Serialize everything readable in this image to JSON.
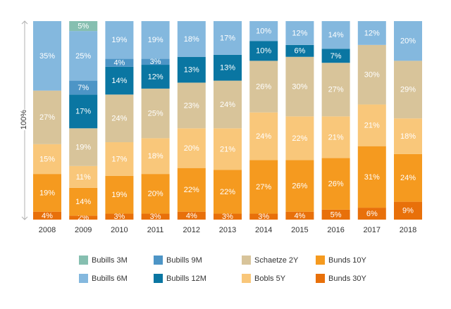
{
  "chart_data": {
    "type": "bar",
    "stacked": true,
    "ylabel": "100%",
    "categories": [
      "2008",
      "2009",
      "2010",
      "2011",
      "2012",
      "2013",
      "2014",
      "2015",
      "2016",
      "2017",
      "2018"
    ],
    "series": [
      {
        "name": "Bunds 30Y",
        "color": "#e8700a",
        "values": [
          4,
          2,
          3,
          3,
          4,
          3,
          3,
          4,
          5,
          6,
          9
        ]
      },
      {
        "name": "Bunds 10Y",
        "color": "#f59a1f",
        "values": [
          19,
          14,
          19,
          20,
          22,
          22,
          27,
          26,
          26,
          31,
          24
        ]
      },
      {
        "name": "Bobls 5Y",
        "color": "#f9c77a",
        "values": [
          15,
          11,
          17,
          18,
          20,
          21,
          24,
          22,
          21,
          21,
          18
        ]
      },
      {
        "name": "Schaetze 2Y",
        "color": "#d8c49a",
        "values": [
          27,
          19,
          24,
          25,
          23,
          24,
          26,
          30,
          27,
          30,
          29
        ]
      },
      {
        "name": "Bubills 12M",
        "color": "#0a76a2",
        "values": [
          0,
          17,
          14,
          12,
          13,
          13,
          10,
          6,
          7,
          0,
          0
        ]
      },
      {
        "name": "Bubills 9M",
        "color": "#4d95c6",
        "values": [
          0,
          7,
          4,
          3,
          0,
          0,
          0,
          0,
          0,
          0,
          0
        ]
      },
      {
        "name": "Bubills 6M",
        "color": "#84b8de",
        "values": [
          35,
          25,
          19,
          19,
          18,
          17,
          10,
          12,
          14,
          12,
          20
        ]
      },
      {
        "name": "Bubills 3M",
        "color": "#86bfb0",
        "values": [
          0,
          5,
          0,
          0,
          0,
          0,
          0,
          0,
          0,
          0,
          0
        ]
      }
    ],
    "legend": {
      "placement": "bottom",
      "order": [
        "Bubills 3M",
        "Bubills 9M",
        "Schaetze 2Y",
        "Bunds 10Y",
        "Bubills 6M",
        "Bubills 12M",
        "Bobls 5Y",
        "Bunds 30Y"
      ]
    }
  }
}
